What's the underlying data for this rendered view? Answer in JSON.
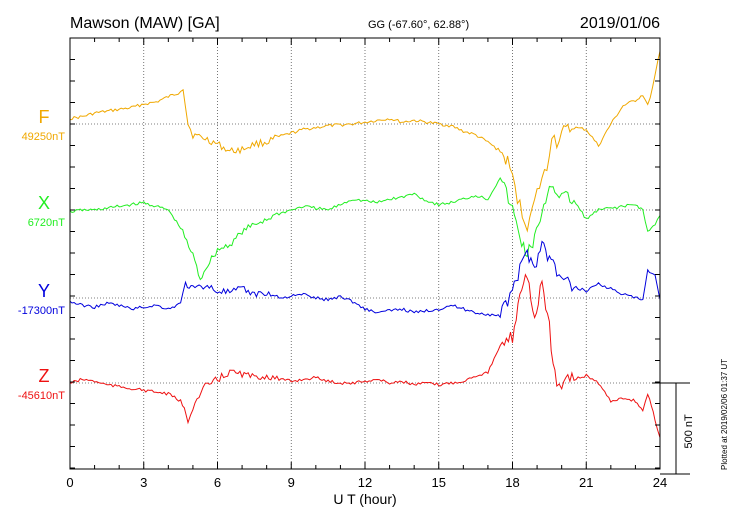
{
  "header": {
    "station": "Mawson (MAW)  [GA]",
    "coords": "GG (-67.60°,  62.88°)",
    "date": "2019/01/06"
  },
  "footer": {
    "plotted": "Plotted at 2019/02/06 01:37 UT"
  },
  "chart_data": {
    "type": "line",
    "xlabel": "U T (hour)",
    "xlim": [
      0,
      24
    ],
    "xticks": [
      0,
      3,
      6,
      9,
      12,
      15,
      18,
      21,
      24
    ],
    "grid": true,
    "scale_bar": {
      "label": "500 nT",
      "value_nT": 500
    },
    "series": [
      {
        "name": "F",
        "baseline_label": "49250nT",
        "baseline_nT": 49250,
        "color": "#f0a800",
        "x": [
          0,
          0.5,
          1,
          1.5,
          2,
          2.5,
          3,
          3.5,
          4,
          4.4,
          4.6,
          4.8,
          5,
          5.5,
          6,
          6.5,
          7,
          7.5,
          8,
          8.5,
          9,
          9.5,
          10,
          10.5,
          11,
          11.5,
          12,
          12.5,
          13,
          13.5,
          14,
          14.5,
          15,
          15.5,
          16,
          16.5,
          17,
          17.5,
          17.8,
          18,
          18.2,
          18.4,
          18.6,
          18.8,
          19,
          19.2,
          19.4,
          19.6,
          19.8,
          20,
          20.5,
          21,
          21.5,
          22,
          22.5,
          23,
          23.3,
          23.5,
          23.7,
          24
        ],
        "values": [
          30,
          40,
          60,
          70,
          80,
          90,
          110,
          120,
          150,
          170,
          200,
          0,
          -60,
          -80,
          -110,
          -150,
          -140,
          -110,
          -100,
          -70,
          -50,
          -30,
          -20,
          -10,
          -5,
          0,
          10,
          20,
          30,
          10,
          20,
          10,
          0,
          -10,
          -40,
          -60,
          -100,
          -150,
          -210,
          -300,
          -400,
          -500,
          -550,
          -480,
          -380,
          -300,
          -250,
          -50,
          -100,
          -50,
          -20,
          -30,
          -120,
          0,
          100,
          130,
          160,
          100,
          200,
          400
        ]
      },
      {
        "name": "X",
        "baseline_label": "6720nT",
        "baseline_nT": 6720,
        "color": "#22ee22",
        "x": [
          0,
          0.5,
          1,
          1.5,
          2,
          2.5,
          3,
          3.5,
          4,
          4.5,
          5,
          5.3,
          5.6,
          6,
          6.5,
          7,
          7.5,
          8,
          8.5,
          9,
          9.5,
          10,
          10.5,
          11,
          11.5,
          12,
          12.5,
          13,
          13.5,
          14,
          14.5,
          15,
          15.5,
          16,
          16.5,
          17,
          17.5,
          18,
          18.3,
          18.6,
          18.9,
          19.2,
          19.5,
          19.8,
          20,
          20.5,
          21,
          21.5,
          22,
          22.5,
          23,
          23.3,
          23.5,
          23.8,
          24
        ],
        "values": [
          -10,
          0,
          0,
          10,
          20,
          30,
          40,
          20,
          0,
          -100,
          -250,
          -380,
          -300,
          -220,
          -190,
          -120,
          -80,
          -50,
          -20,
          0,
          20,
          10,
          0,
          30,
          60,
          50,
          40,
          60,
          70,
          90,
          50,
          30,
          40,
          60,
          80,
          60,
          180,
          0,
          -150,
          -250,
          -150,
          -50,
          150,
          100,
          80,
          50,
          -50,
          0,
          10,
          20,
          30,
          0,
          -120,
          -80,
          -30
        ]
      },
      {
        "name": "Y",
        "baseline_label": "-17300nT",
        "baseline_nT": -17300,
        "color": "#0000dd",
        "x": [
          0,
          0.5,
          1,
          1.5,
          2,
          2.5,
          3,
          3.5,
          4,
          4.5,
          4.7,
          5,
          5.5,
          6,
          6.5,
          7,
          7.5,
          8,
          8.5,
          9,
          9.5,
          10,
          10.5,
          11,
          11.5,
          12,
          12.5,
          13,
          13.5,
          14,
          14.5,
          15,
          15.5,
          16,
          16.5,
          17,
          17.5,
          17.8,
          18,
          18.3,
          18.6,
          18.9,
          19.2,
          19.5,
          19.8,
          20,
          20.5,
          21,
          21.5,
          22,
          22.5,
          23,
          23.3,
          23.5,
          23.8,
          24
        ],
        "values": [
          -20,
          -40,
          -50,
          -30,
          -40,
          -60,
          -50,
          -40,
          -60,
          -30,
          80,
          50,
          70,
          40,
          30,
          50,
          20,
          30,
          0,
          10,
          20,
          0,
          -10,
          10,
          -20,
          -60,
          -80,
          -70,
          -60,
          -80,
          -70,
          -60,
          -40,
          -60,
          -80,
          -90,
          -100,
          -20,
          60,
          150,
          250,
          180,
          300,
          220,
          150,
          100,
          60,
          40,
          80,
          50,
          20,
          0,
          -10,
          150,
          120,
          -10
        ]
      },
      {
        "name": "Z",
        "baseline_label": "-45610nT",
        "baseline_nT": -45610,
        "color": "#ee1111",
        "x": [
          0,
          0.5,
          1,
          1.5,
          2,
          2.5,
          3,
          3.5,
          4,
          4.5,
          4.8,
          5,
          5.5,
          6,
          6.5,
          7,
          7.5,
          8,
          8.5,
          9,
          9.5,
          10,
          10.5,
          11,
          11.5,
          12,
          12.5,
          13,
          13.5,
          14,
          14.5,
          15,
          15.5,
          16,
          16.5,
          17,
          17.5,
          18,
          18.3,
          18.6,
          18.9,
          19.2,
          19.5,
          19.8,
          20,
          20.5,
          21,
          21.5,
          22,
          22.5,
          23,
          23.3,
          23.5,
          23.8,
          24
        ],
        "values": [
          0,
          20,
          10,
          -10,
          -20,
          -30,
          -40,
          -50,
          -60,
          -100,
          -200,
          -130,
          -20,
          20,
          60,
          50,
          30,
          40,
          20,
          10,
          20,
          30,
          10,
          0,
          0,
          10,
          20,
          0,
          10,
          -10,
          0,
          -10,
          0,
          10,
          40,
          60,
          200,
          250,
          500,
          600,
          350,
          550,
          300,
          -50,
          0,
          20,
          40,
          0,
          -100,
          -80,
          -100,
          -150,
          -60,
          -200,
          -300
        ]
      }
    ]
  }
}
